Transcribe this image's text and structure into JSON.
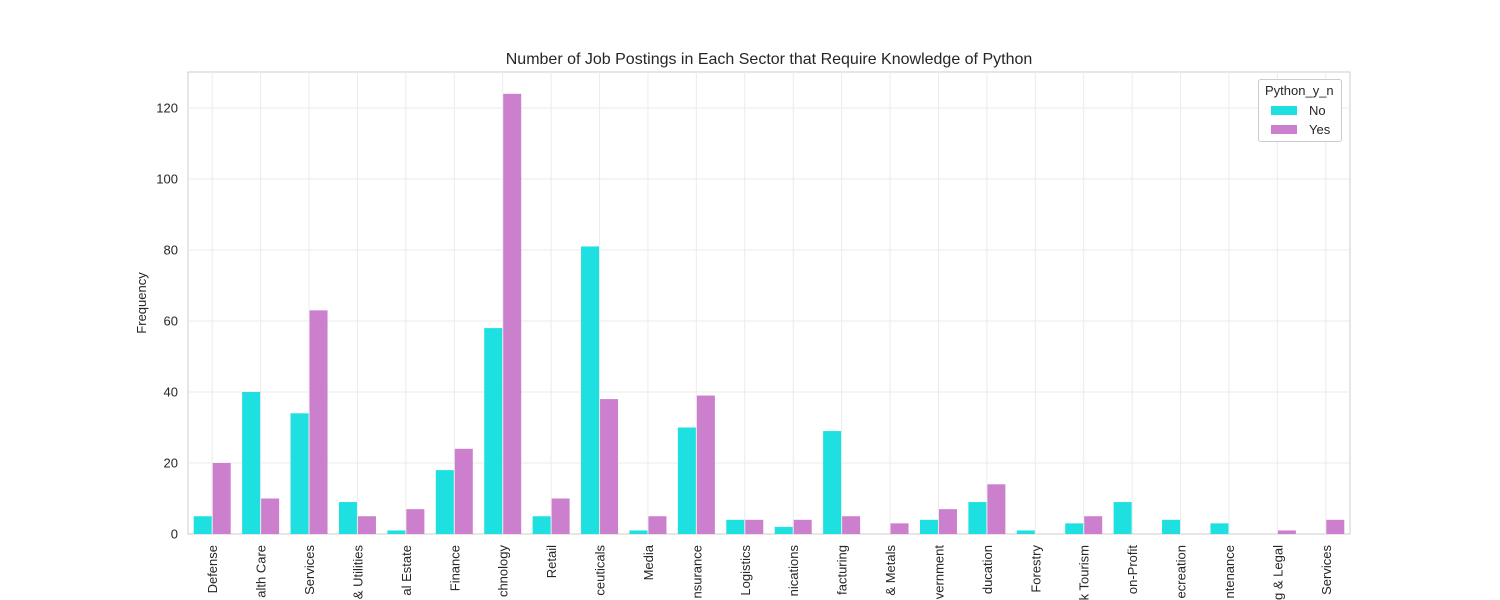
{
  "chart_data": {
    "type": "bar",
    "title": "Number of Job Postings in Each Sector that Require Knowledge of Python",
    "xlabel": "",
    "ylabel": "Frequency",
    "ylim": [
      0,
      130
    ],
    "yticks": [
      0,
      20,
      40,
      60,
      80,
      100,
      120
    ],
    "grid": true,
    "legend_position": "top-right",
    "legend_title": "Python_y_n",
    "categories": [
      "Defense",
      "alth Care",
      "Services",
      "& Utilities",
      "al Estate",
      "Finance",
      "chnology",
      "Retail",
      "ceuticals",
      "Media",
      "nsurance",
      "Logistics",
      "nications",
      "facturing",
      "& Metals",
      "vernment",
      "ducation",
      "Forestry",
      "k Tourism",
      "on-Profit",
      "ecreation",
      "ntenance",
      "g & Legal",
      "Services"
    ],
    "series": [
      {
        "name": "No",
        "color": "#1fe0e0",
        "values": [
          5,
          40,
          34,
          9,
          1,
          18,
          58,
          5,
          81,
          1,
          30,
          4,
          2,
          29,
          0,
          4,
          9,
          1,
          3,
          9,
          4,
          3,
          0,
          0
        ]
      },
      {
        "name": "Yes",
        "color": "#cc7fcc",
        "values": [
          20,
          10,
          63,
          5,
          7,
          24,
          124,
          10,
          38,
          5,
          39,
          4,
          4,
          5,
          3,
          7,
          14,
          0,
          5,
          0,
          0,
          0,
          1,
          4
        ]
      }
    ]
  }
}
